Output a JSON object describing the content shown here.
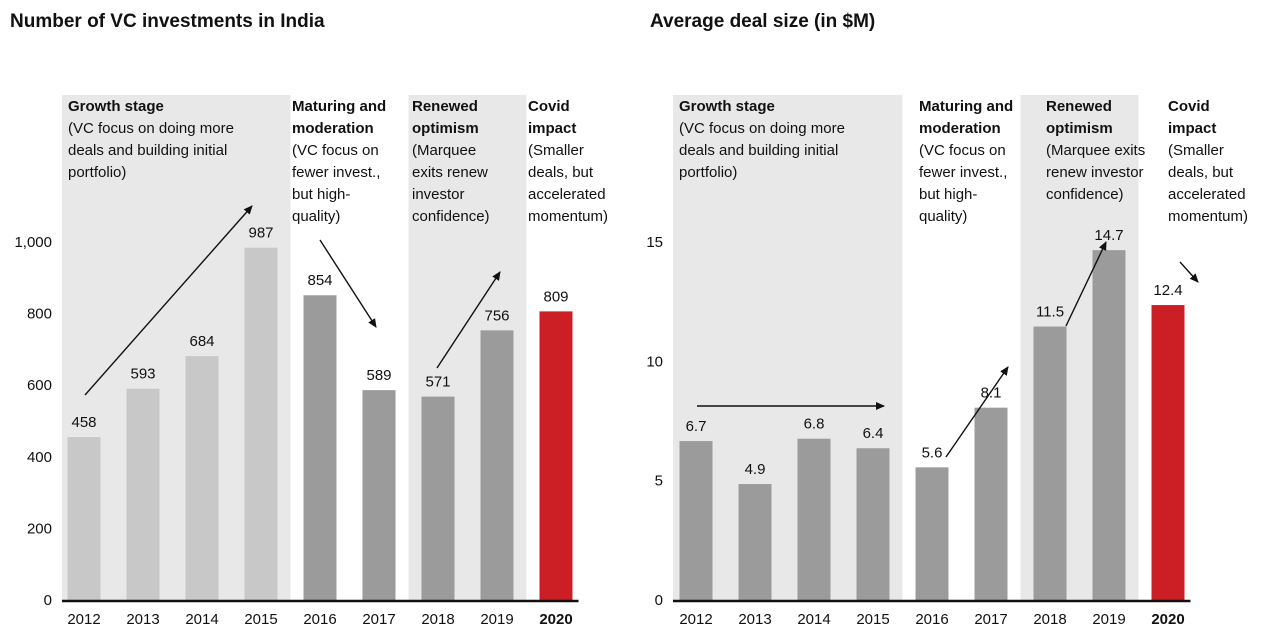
{
  "chart_data": [
    {
      "type": "bar",
      "title": "Number of VC investments in India",
      "categories": [
        "2012",
        "2013",
        "2014",
        "2015",
        "2016",
        "2017",
        "2018",
        "2019",
        "2020"
      ],
      "values": [
        458,
        593,
        684,
        987,
        854,
        589,
        571,
        756,
        809
      ],
      "colors": [
        "#c8c8c8",
        "#c8c8c8",
        "#c8c8c8",
        "#c8c8c8",
        "#9b9b9b",
        "#9b9b9b",
        "#9b9b9b",
        "#9b9b9b",
        "#cc1f25"
      ],
      "ylim": [
        0,
        1000
      ],
      "yticks": [
        0,
        200,
        400,
        600,
        800,
        {
          "value": 1000,
          "label": "1,000"
        }
      ],
      "phases": [
        {
          "heading": [
            "Growth stage"
          ],
          "description": [
            "(VC focus on doing more",
            "deals and building initial",
            "portfolio)"
          ]
        },
        {
          "heading": [
            "Maturing and",
            "moderation"
          ],
          "description": [
            "(VC focus on",
            "fewer invest.,",
            "but high-",
            "quality)"
          ]
        },
        {
          "heading": [
            "Renewed",
            "optimism"
          ],
          "description": [
            "(Marquee",
            "exits renew",
            "investor",
            "confidence)"
          ]
        },
        {
          "heading": [
            "Covid",
            "impact"
          ],
          "description": [
            "(Smaller",
            "deals, but",
            "accelerated",
            "momentum)"
          ]
        }
      ]
    },
    {
      "type": "bar",
      "title": "Average deal size (in $M)",
      "categories": [
        "2012",
        "2013",
        "2014",
        "2015",
        "2016",
        "2017",
        "2018",
        "2019",
        "2020"
      ],
      "values": [
        6.7,
        4.9,
        6.8,
        6.4,
        5.6,
        8.1,
        11.5,
        14.7,
        12.4
      ],
      "colors": [
        "#9b9b9b",
        "#9b9b9b",
        "#9b9b9b",
        "#9b9b9b",
        "#9b9b9b",
        "#9b9b9b",
        "#9b9b9b",
        "#9b9b9b",
        "#cc1f25"
      ],
      "ylim": [
        0,
        15
      ],
      "yticks": [
        0,
        5,
        10,
        15
      ],
      "phases": [
        {
          "heading": [
            "Growth stage"
          ],
          "description": [
            "(VC focus on doing more",
            "deals and building initial",
            "portfolio)"
          ]
        },
        {
          "heading": [
            "Maturing and",
            "moderation"
          ],
          "description": [
            "(VC focus on",
            "fewer invest.,",
            "but high-",
            "quality)"
          ]
        },
        {
          "heading": [
            "Renewed",
            "optimism"
          ],
          "description": [
            "(Marquee exits",
            "renew investor",
            "confidence)"
          ]
        },
        {
          "heading": [
            "Covid",
            "impact"
          ],
          "description": [
            "(Smaller",
            "deals, but",
            "accelerated",
            "momentum)"
          ]
        }
      ]
    }
  ]
}
